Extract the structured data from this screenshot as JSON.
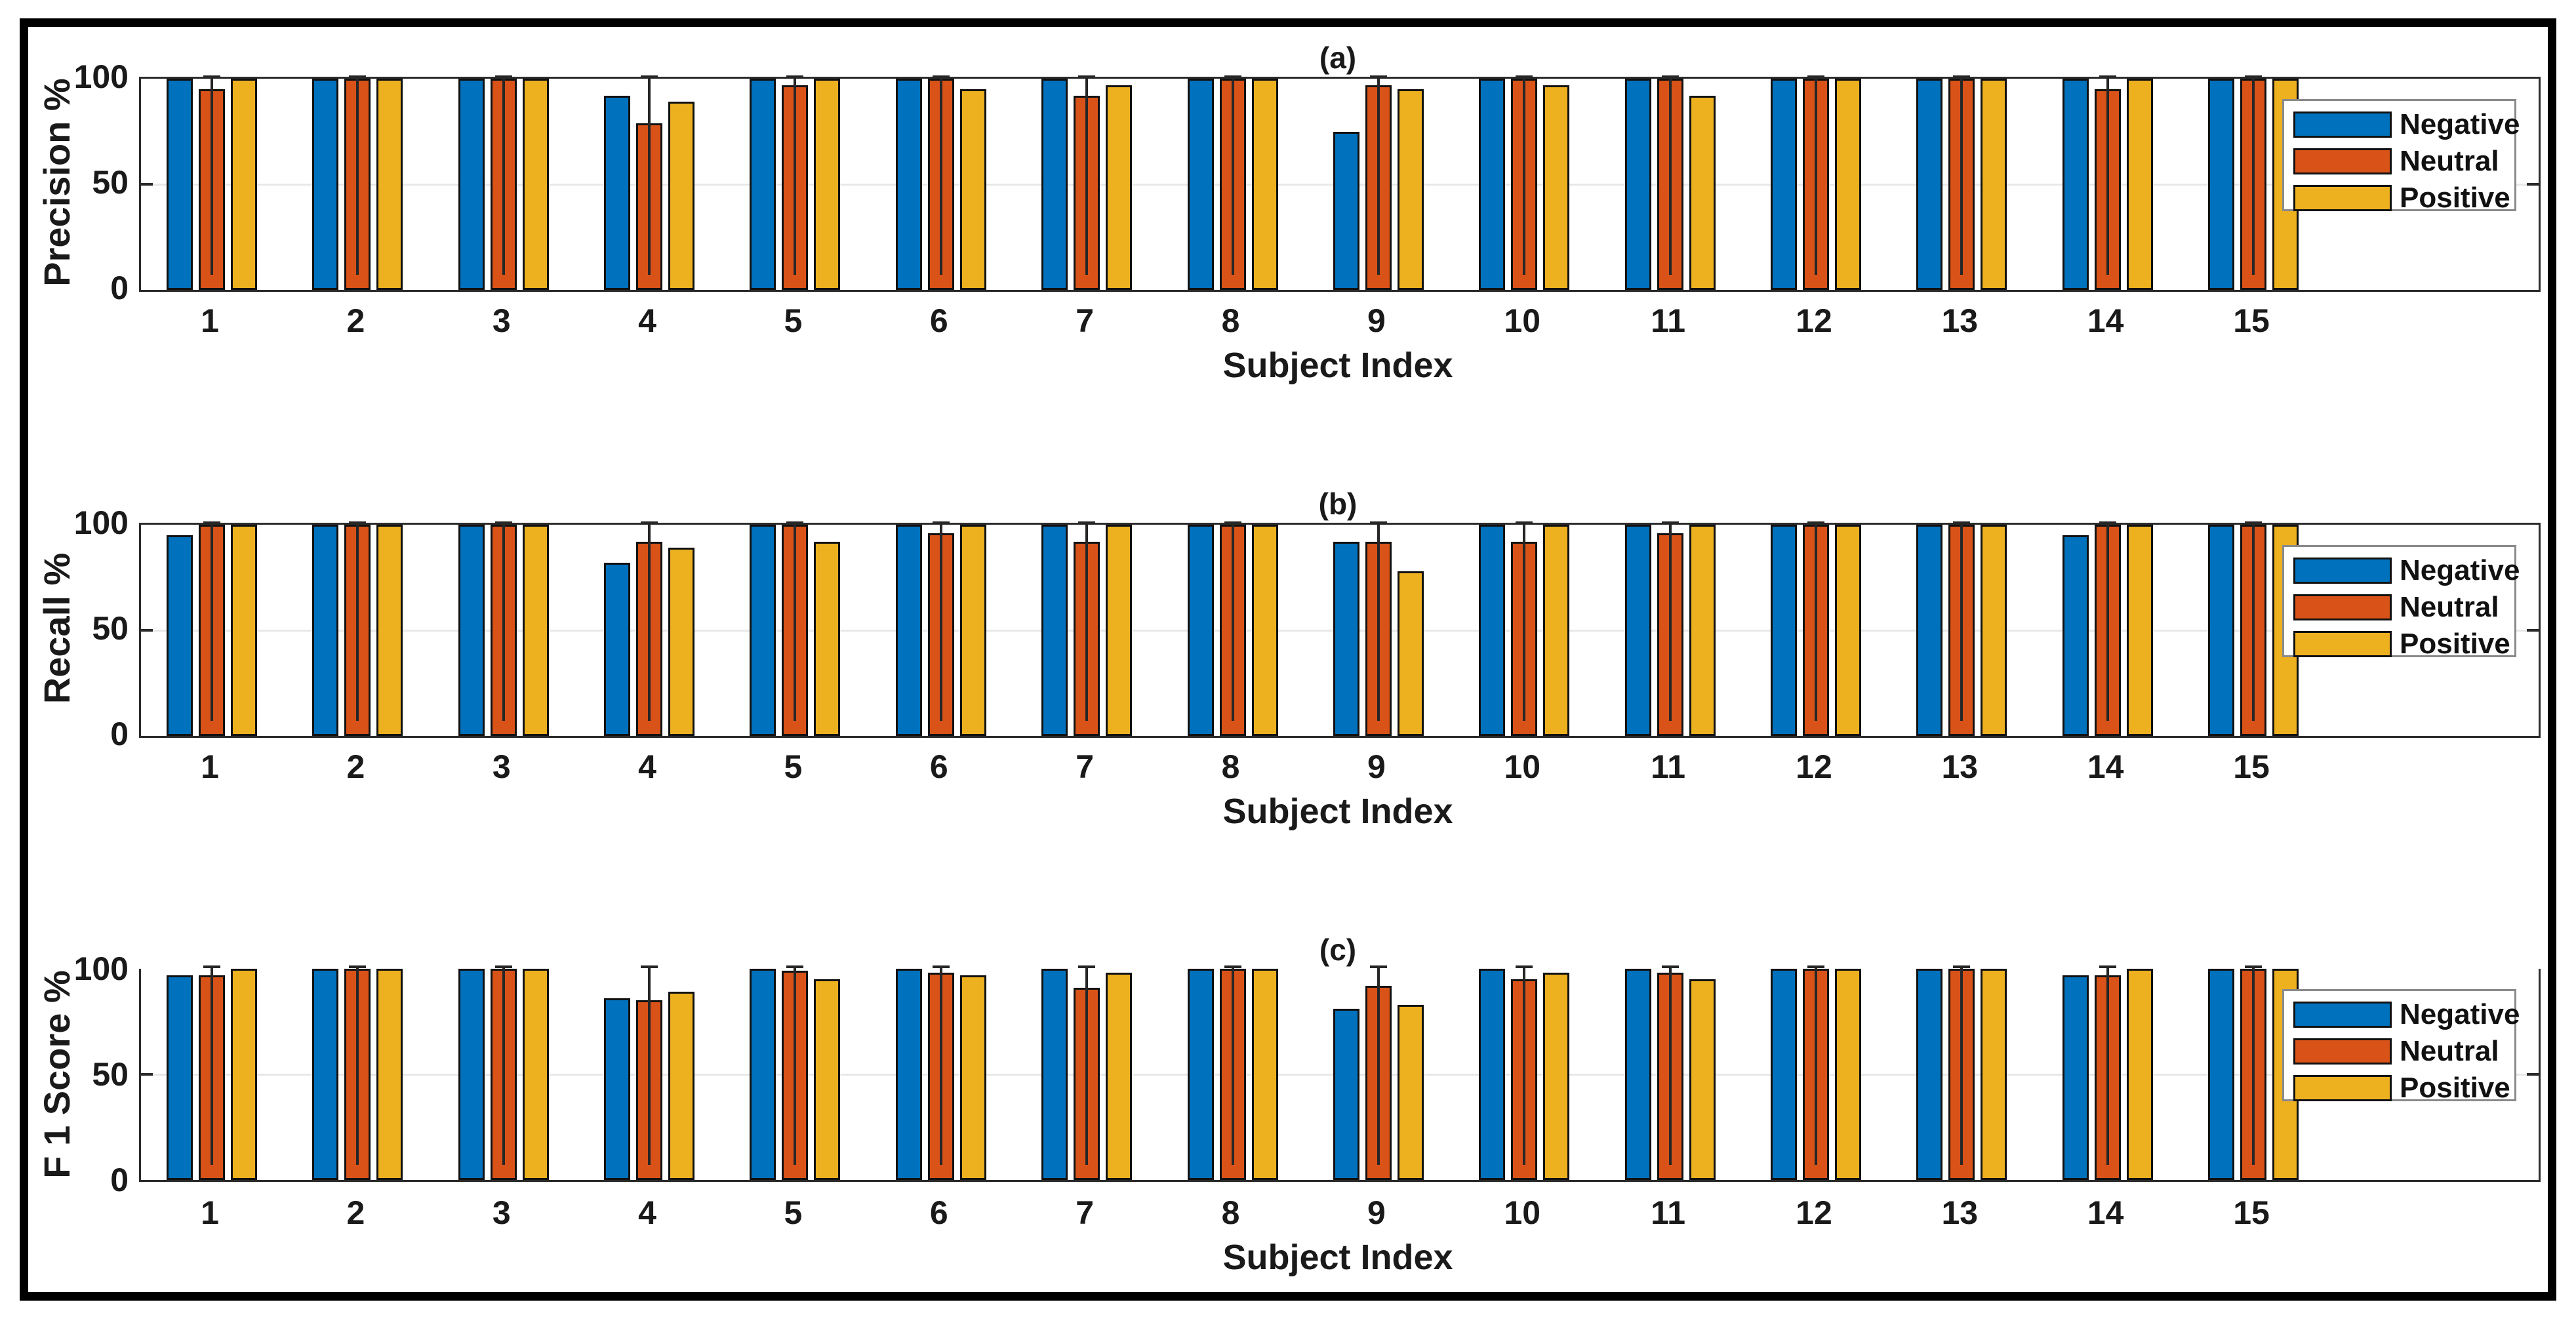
{
  "figure": {
    "frame_color": "#000000",
    "spine_color": "#2b2b2b",
    "grid_color": "#e8e8e8",
    "text_color": "#1a1a1a",
    "legend_items": [
      "Negative",
      "Neutral",
      "Positive"
    ],
    "series_colors": {
      "Negative": "#0072BD",
      "Neutral": "#D95319",
      "Positive": "#EDB120"
    }
  },
  "chart_data": [
    {
      "id": "a",
      "type": "bar",
      "title": "(a)",
      "ylabel": "Precision %",
      "xlabel": "Subject Index",
      "categories": [
        "1",
        "2",
        "3",
        "4",
        "5",
        "6",
        "7",
        "8",
        "9",
        "10",
        "11",
        "12",
        "13",
        "14",
        "15"
      ],
      "yticks": [
        "0",
        "50",
        "100"
      ],
      "ylim": [
        0,
        100
      ],
      "grid": "y at 50",
      "legend_position": "right-top-inside",
      "top_spine": true,
      "whisker": {
        "series": "Neutral",
        "lo": 7,
        "hi": 101,
        "color": "#262626"
      },
      "series": [
        {
          "name": "Negative",
          "color": "#0072BD",
          "values": [
            100,
            100,
            100,
            92,
            100,
            100,
            100,
            100,
            75,
            100,
            100,
            100,
            100,
            100,
            100
          ]
        },
        {
          "name": "Neutral",
          "color": "#D95319",
          "values": [
            95,
            100,
            100,
            79,
            97,
            100,
            92,
            100,
            97,
            100,
            100,
            100,
            100,
            95,
            100
          ]
        },
        {
          "name": "Positive",
          "color": "#EDB120",
          "values": [
            100,
            100,
            100,
            89,
            100,
            95,
            97,
            100,
            95,
            97,
            92,
            100,
            100,
            100,
            100
          ]
        }
      ]
    },
    {
      "id": "b",
      "type": "bar",
      "title": "(b)",
      "ylabel": "Recall %",
      "xlabel": "Subject Index",
      "categories": [
        "1",
        "2",
        "3",
        "4",
        "5",
        "6",
        "7",
        "8",
        "9",
        "10",
        "11",
        "12",
        "13",
        "14",
        "15"
      ],
      "yticks": [
        "0",
        "50",
        "100"
      ],
      "ylim": [
        0,
        100
      ],
      "grid": "y at 50",
      "legend_position": "right-top-inside",
      "top_spine": true,
      "whisker": {
        "series": "Neutral",
        "lo": 7,
        "hi": 101,
        "color": "#262626"
      },
      "series": [
        {
          "name": "Negative",
          "color": "#0072BD",
          "values": [
            95,
            100,
            100,
            82,
            100,
            100,
            100,
            100,
            92,
            100,
            100,
            100,
            100,
            95,
            100
          ]
        },
        {
          "name": "Neutral",
          "color": "#D95319",
          "values": [
            100,
            100,
            100,
            92,
            100,
            96,
            92,
            100,
            92,
            92,
            96,
            100,
            100,
            100,
            100
          ]
        },
        {
          "name": "Positive",
          "color": "#EDB120",
          "values": [
            100,
            100,
            100,
            89,
            92,
            100,
            100,
            100,
            78,
            100,
            100,
            100,
            100,
            100,
            100
          ]
        }
      ]
    },
    {
      "id": "c",
      "type": "bar",
      "title": "(c)",
      "ylabel": "F 1 Score %",
      "xlabel": "Subject Index",
      "categories": [
        "1",
        "2",
        "3",
        "4",
        "5",
        "6",
        "7",
        "8",
        "9",
        "10",
        "11",
        "12",
        "13",
        "14",
        "15"
      ],
      "yticks": [
        "0",
        "50",
        "100"
      ],
      "ylim": [
        0,
        100
      ],
      "grid": "y at 50",
      "legend_position": "right-top-inside",
      "top_spine": false,
      "whisker": {
        "series": "Neutral",
        "lo": 7,
        "hi": 101,
        "color": "#262626"
      },
      "series": [
        {
          "name": "Negative",
          "color": "#0072BD",
          "values": [
            97,
            100,
            100,
            86,
            100,
            100,
            100,
            100,
            81,
            100,
            100,
            100,
            100,
            97,
            100
          ]
        },
        {
          "name": "Neutral",
          "color": "#D95319",
          "values": [
            97,
            100,
            100,
            85,
            99,
            98,
            91,
            100,
            92,
            95,
            98,
            100,
            100,
            97,
            100
          ]
        },
        {
          "name": "Positive",
          "color": "#EDB120",
          "values": [
            100,
            100,
            100,
            89,
            95,
            97,
            98,
            100,
            83,
            98,
            95,
            100,
            100,
            100,
            100
          ]
        }
      ]
    }
  ]
}
